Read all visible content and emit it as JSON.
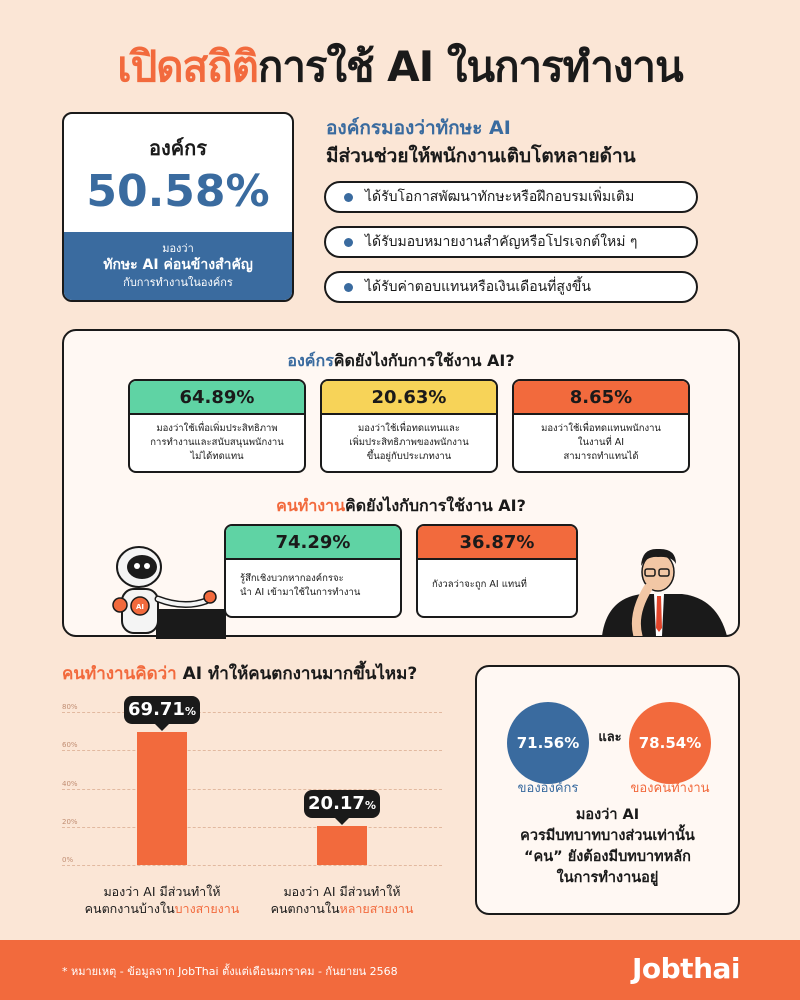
{
  "title": {
    "accent": "เปิดสถิติ",
    "rest": "การใช้ AI ในการทำงาน"
  },
  "org_card": {
    "label": "องค์กร",
    "value": "50.58%",
    "line1": "มองว่า",
    "line2": "ทักษะ AI ค่อนข้างสำคัญ",
    "line3": "กับการทำงานในองค์กร"
  },
  "growth": {
    "title_line1": "องค์กรมองว่าทักษะ AI",
    "title_line2": "มีส่วนช่วยให้พนักงานเติบโตหลายด้าน",
    "items": [
      "ได้รับโอกาสพัฒนาทักษะหรือฝึกอบรมเพิ่มเติม",
      "ได้รับมอบหมายงานสำคัญหรือโปรเจกต์ใหม่ ๆ",
      "ได้รับค่าตอบแทนหรือเงินเดือนที่สูงขึ้น"
    ]
  },
  "org_think": {
    "title_accent": "องค์กร",
    "title_rest": "คิดยังไงกับการใช้งาน AI?",
    "cards": [
      {
        "value": "64.89%",
        "lines": [
          "มองว่าใช้เพื่อเพิ่มประสิทธิภาพ",
          "การทำงานและสนับสนุนพนักงาน",
          "ไม่ได้ทดแทน"
        ],
        "color": "#5fd3a4"
      },
      {
        "value": "20.63%",
        "lines": [
          "มองว่าใช้เพื่อทดแทนและ",
          "เพิ่มประสิทธิภาพของพนักงาน",
          "ขึ้นอยู่กับประเภทงาน"
        ],
        "color": "#f7d358"
      },
      {
        "value": "8.65%",
        "lines": [
          "มองว่าใช้เพื่อทดแทนพนักงาน",
          "ในงานที่ AI",
          "สามารถทำแทนได้"
        ],
        "color": "#f26a3d"
      }
    ]
  },
  "emp_think": {
    "title_accent": "คนทำงาน",
    "title_rest": "คิดยังไงกับการใช้งาน AI?",
    "cards": [
      {
        "value": "74.29%",
        "lines": [
          "รู้สึกเชิงบวกหากองค์กรจะ",
          "นำ AI เข้ามาใช้ในการทำงาน"
        ],
        "color": "#5fd3a4"
      },
      {
        "value": "36.87%",
        "lines": [
          "กังวลว่าจะถูก AI แทนที่"
        ],
        "color": "#f26a3d"
      }
    ]
  },
  "robot_badge": "AI",
  "unemp": {
    "title_accent": "คนทำงานคิดว่า",
    "title_rest": " AI ทำให้คนตกงานมากขึ้นไหม?"
  },
  "chart_data": {
    "type": "bar",
    "categories": [
      "มองว่า AI มีส่วนทำให้ คนตกงานบ้างในบางสายงาน",
      "มองว่า AI มีส่วนทำให้ คนตกงานในหลายสายงาน"
    ],
    "values": [
      69.71,
      20.17
    ],
    "value_labels": [
      "69.71",
      "20.17"
    ],
    "unit": "%",
    "ylim": [
      0,
      80
    ],
    "yticks": [
      "0%",
      "20%",
      "40%",
      "60%",
      "80%"
    ],
    "grid": true,
    "bar_color": "#f26a3d",
    "labels": [
      {
        "line1": "มองว่า AI มีส่วนทำให้",
        "line2_plain": "คนตกงานบ้างใน",
        "line2_hl": "บางสายงาน"
      },
      {
        "line1": "มองว่า AI มีส่วนทำให้",
        "line2_plain": "คนตกงานใน",
        "line2_hl": "หลายสายงาน"
      }
    ]
  },
  "compare": {
    "left_value": "71.56%",
    "right_value": "78.54%",
    "and": "และ",
    "left_caption": "ขององค์กร",
    "right_caption": "ของคนทำงาน",
    "lines": [
      "มองว่า AI",
      "ควรมีบทบาทบางส่วนเท่านั้น",
      "“คน” ยังต้องมีบทบาทหลัก",
      "ในการทำงานอยู่"
    ]
  },
  "footer": {
    "note": "* หมายเหตุ - ข้อมูลจาก JobThai ตั้งแต่เดือนมกราคม - กันยายน 2568",
    "logo": "Jobthai"
  },
  "colors": {
    "accent": "#f26a3d",
    "blue": "#3a6b9f",
    "green": "#5fd3a4",
    "yellow": "#f7d358",
    "background": "#fbe6d6"
  }
}
